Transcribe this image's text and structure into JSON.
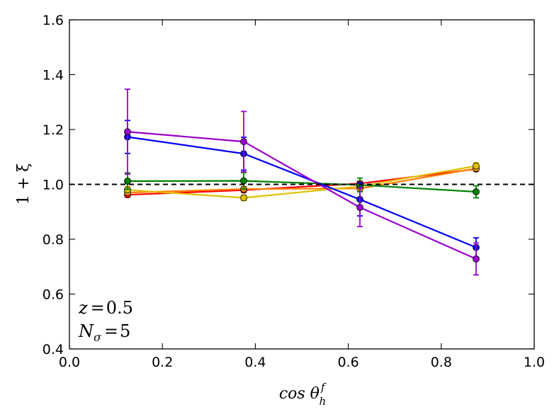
{
  "chart_data": {
    "type": "line",
    "title": "",
    "xlabel": "cos θ",
    "xlabel_sup": "f",
    "xlabel_sub": "h",
    "ylabel": "1 + ξ",
    "xlim": [
      0.0,
      1.0
    ],
    "ylim": [
      0.4,
      1.6
    ],
    "xticks": [
      0.0,
      0.2,
      0.4,
      0.6,
      0.8,
      1.0
    ],
    "xtick_labels": [
      "0.0",
      "0.2",
      "0.4",
      "0.6",
      "0.8",
      "1.0"
    ],
    "yticks": [
      0.4,
      0.6,
      0.8,
      1.0,
      1.2,
      1.4,
      1.6
    ],
    "ytick_labels": [
      "0.4",
      "0.6",
      "0.8",
      "1.0",
      "1.2",
      "1.4",
      "1.6"
    ],
    "reference_line": {
      "y": 1.0,
      "style": "dashed",
      "color": "#000000"
    },
    "x": [
      0.125,
      0.375,
      0.625,
      0.875
    ],
    "series": [
      {
        "name": "red",
        "color": "#ff0000",
        "values": [
          0.962,
          0.979,
          1.003,
          1.056
        ],
        "errors": [
          0.008,
          0.008,
          0.008,
          0.008
        ]
      },
      {
        "name": "orange",
        "color": "#ff8000",
        "values": [
          0.97,
          0.983,
          0.985,
          1.058
        ],
        "errors": [
          0.008,
          0.008,
          0.008,
          0.008
        ]
      },
      {
        "name": "gold",
        "color": "#e0c000",
        "values": [
          0.98,
          0.951,
          0.993,
          1.067
        ],
        "errors": [
          0.012,
          0.01,
          0.012,
          0.012
        ]
      },
      {
        "name": "green",
        "color": "#008000",
        "values": [
          1.012,
          1.013,
          0.998,
          0.973
        ],
        "errors": [
          0.03,
          0.03,
          0.025,
          0.022
        ]
      },
      {
        "name": "blue",
        "color": "#0000ff",
        "values": [
          1.173,
          1.112,
          0.945,
          0.77
        ],
        "errors": [
          0.06,
          0.06,
          0.06,
          0.035
        ]
      },
      {
        "name": "purple",
        "color": "#9900cc",
        "values": [
          1.192,
          1.156,
          0.916,
          0.728
        ],
        "errors": [
          0.155,
          0.11,
          0.07,
          0.058
        ]
      }
    ],
    "annotations": [
      {
        "var": "z",
        "sub": "",
        "value": "0.5"
      },
      {
        "var": "N",
        "sub": "σ",
        "value": "5"
      }
    ]
  }
}
